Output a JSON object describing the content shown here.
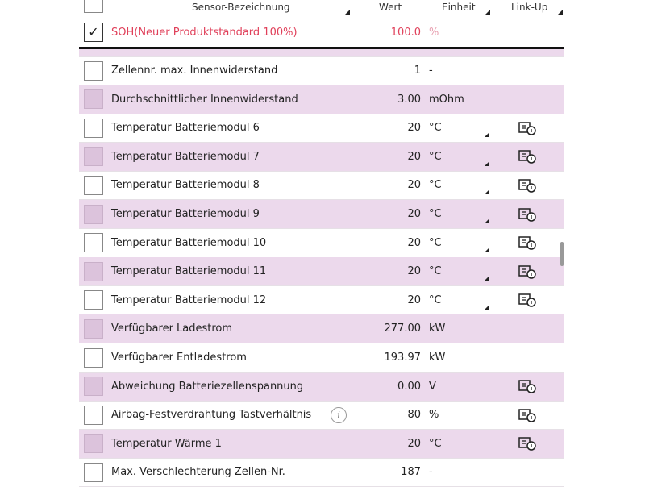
{
  "header": {
    "sensor": "Sensor-Bezeichnung",
    "value": "Wert",
    "unit": "Einheit",
    "link": "Link-Up"
  },
  "selected": {
    "name": "SOH(Neuer Produktstandard 100%)",
    "value": "100.0",
    "unit": "%",
    "checked": true,
    "color": "#e0405a"
  },
  "rows": [
    {
      "name": "Zellennr. max. Innenwiderstand",
      "value": "1",
      "unit": "-",
      "link": false,
      "dropdown": false
    },
    {
      "name": "Durchschnittlicher Innenwiderstand",
      "value": "3.00",
      "unit": "mOhm",
      "link": false,
      "dropdown": false
    },
    {
      "name": "Temperatur Batteriemodul 6",
      "value": "20",
      "unit": "°C",
      "link": true,
      "dropdown": true
    },
    {
      "name": "Temperatur Batteriemodul 7",
      "value": "20",
      "unit": "°C",
      "link": true,
      "dropdown": true
    },
    {
      "name": "Temperatur Batteriemodul 8",
      "value": "20",
      "unit": "°C",
      "link": true,
      "dropdown": true
    },
    {
      "name": "Temperatur Batteriemodul 9",
      "value": "20",
      "unit": "°C",
      "link": true,
      "dropdown": true
    },
    {
      "name": "Temperatur Batteriemodul 10",
      "value": "20",
      "unit": "°C",
      "link": true,
      "dropdown": true
    },
    {
      "name": "Temperatur Batteriemodul 11",
      "value": "20",
      "unit": "°C",
      "link": true,
      "dropdown": true
    },
    {
      "name": "Temperatur Batteriemodul 12",
      "value": "20",
      "unit": "°C",
      "link": true,
      "dropdown": true
    },
    {
      "name": "Verfügbarer Ladestrom",
      "value": "277.00",
      "unit": "kW",
      "link": false,
      "dropdown": false
    },
    {
      "name": "Verfügbarer Entladestrom",
      "value": "193.97",
      "unit": "kW",
      "link": false,
      "dropdown": false
    },
    {
      "name": "Abweichung Batteriezellenspannung",
      "value": "0.00",
      "unit": "V",
      "link": true,
      "dropdown": false
    },
    {
      "name": "Airbag-Festverdrahtung Tastverhältnis",
      "value": "80",
      "unit": "%",
      "link": true,
      "dropdown": false,
      "info": "i"
    },
    {
      "name": "Temperatur Wärme 1",
      "value": "20",
      "unit": "°C",
      "link": true,
      "dropdown": false
    },
    {
      "name": "Max. Verschlechterung Zellen-Nr.",
      "value": "187",
      "unit": "-",
      "link": false,
      "dropdown": false
    }
  ]
}
